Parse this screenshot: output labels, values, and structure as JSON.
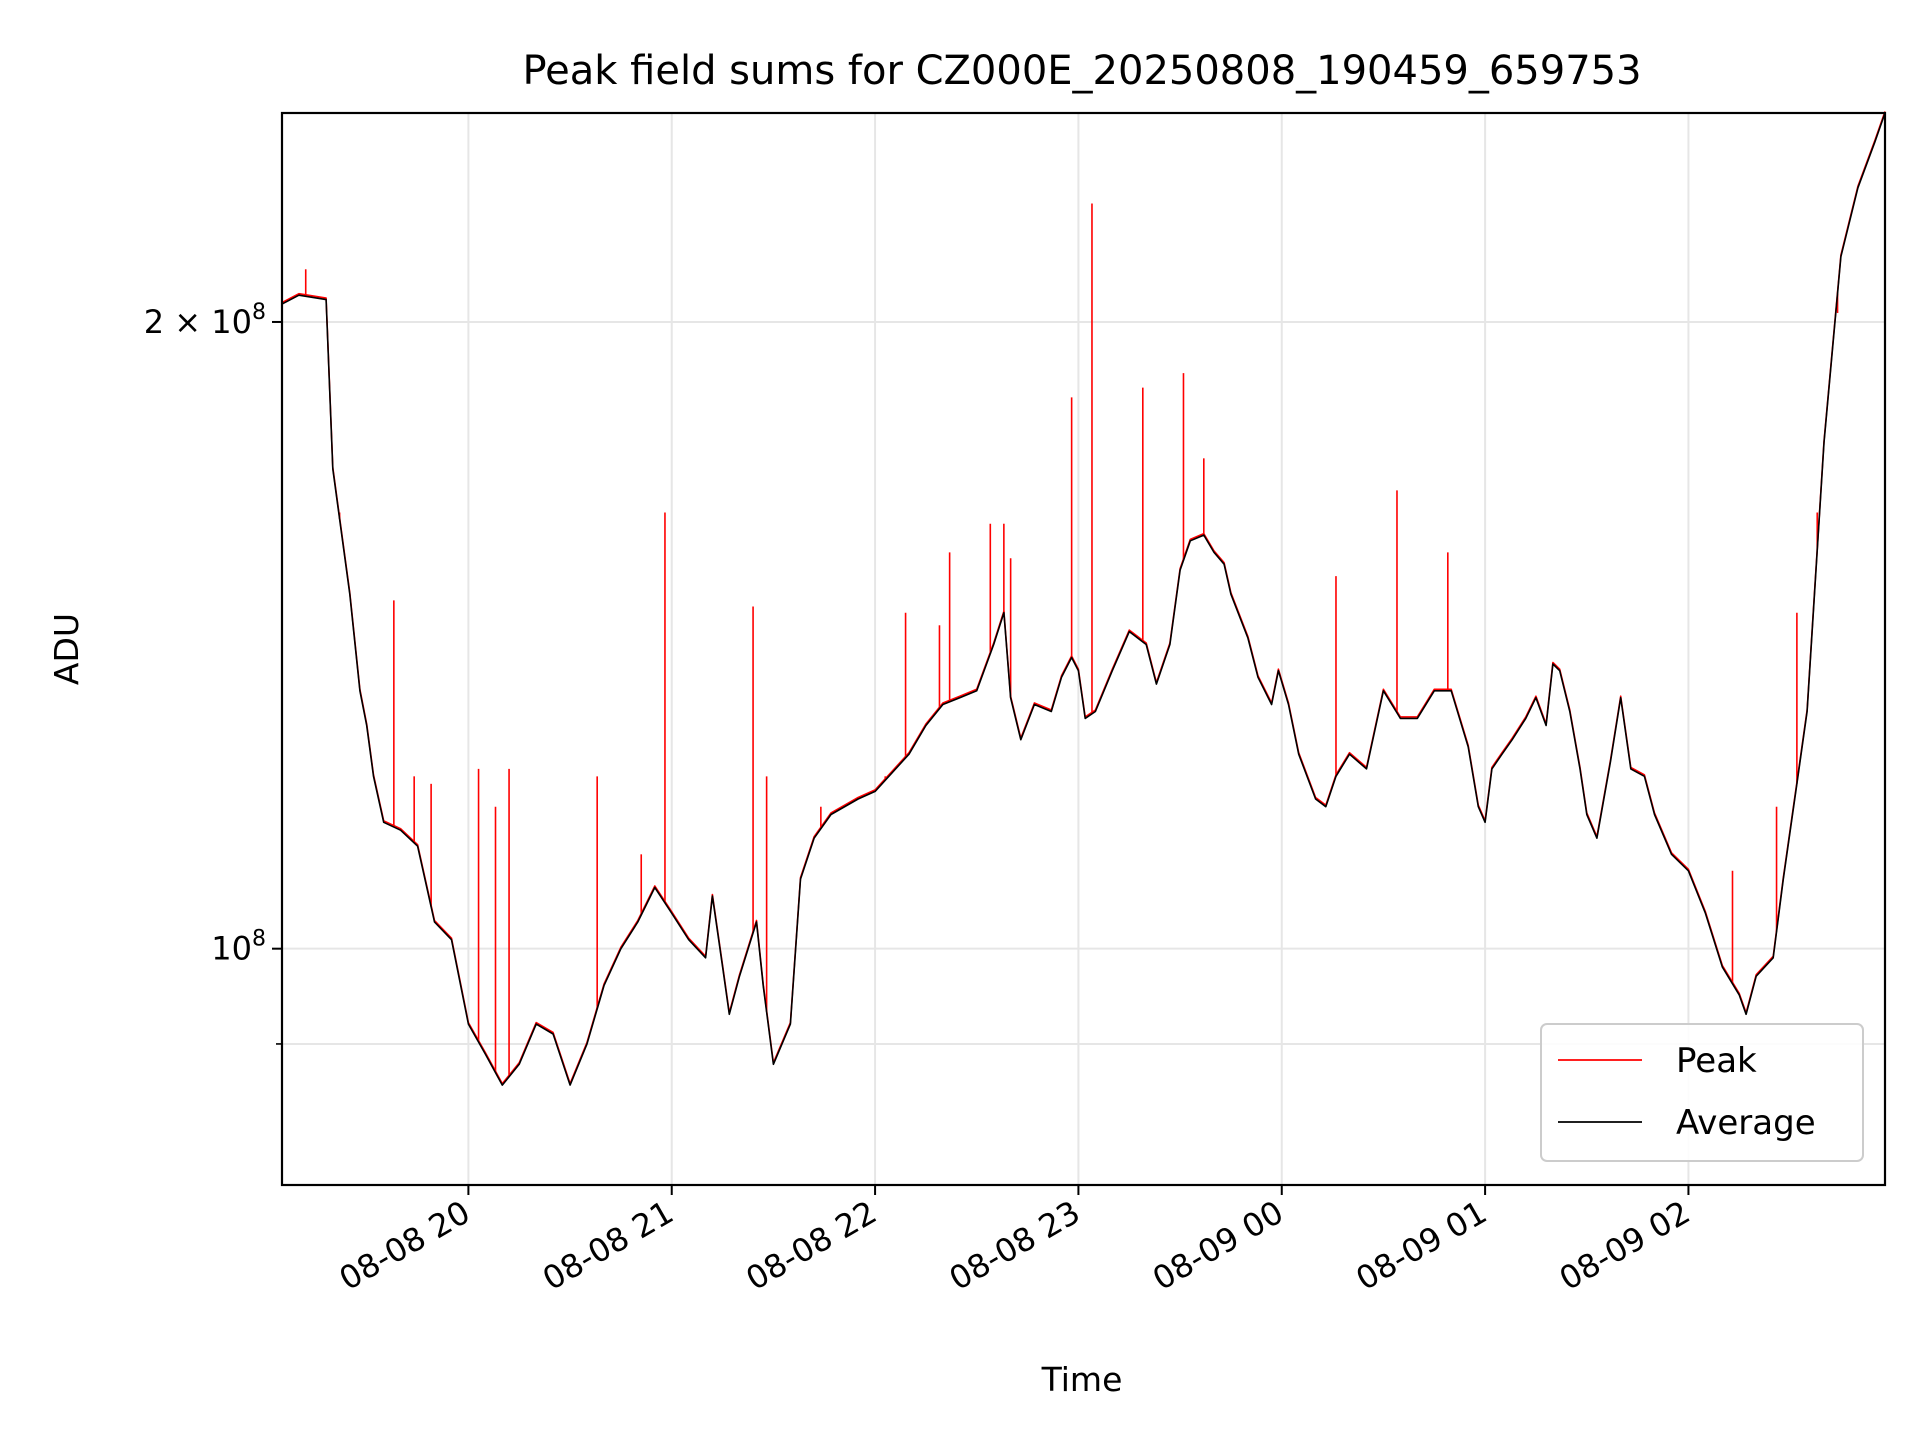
{
  "chart_data": {
    "type": "line",
    "title": "Peak field sums for CZ000E_20250808_190459_659753",
    "xlabel": "Time",
    "ylabel": "ADU",
    "x_axis": {
      "kind": "time",
      "range": [
        "2025-08-08 19:05",
        "2025-08-09 02:58"
      ],
      "ticks": [
        {
          "time": "2025-08-08 20:00",
          "label": "08-08 20"
        },
        {
          "time": "2025-08-08 21:00",
          "label": "08-08 21"
        },
        {
          "time": "2025-08-08 22:00",
          "label": "08-08 22"
        },
        {
          "time": "2025-08-08 23:00",
          "label": "08-08 23"
        },
        {
          "time": "2025-08-09 00:00",
          "label": "08-09 00"
        },
        {
          "time": "2025-08-09 01:00",
          "label": "08-09 01"
        },
        {
          "time": "2025-08-09 02:00",
          "label": "08-09 02"
        }
      ]
    },
    "y_axis": {
      "scale": "log",
      "range": [
        77000000,
        252000000
      ],
      "major_ticks": [
        {
          "value": 100000000,
          "label_base": "10",
          "label_exp": "8",
          "label_prefix": ""
        },
        {
          "value": 200000000,
          "label_base": "10",
          "label_exp": "8",
          "label_prefix": "2 × "
        }
      ],
      "minor_grid": [
        90000000
      ]
    },
    "grid": true,
    "legend": {
      "placement": "lower-right",
      "entries": [
        {
          "name": "Peak",
          "color": "#ff0000"
        },
        {
          "name": "Average",
          "color": "#000000"
        }
      ]
    },
    "series": [
      {
        "name": "Average",
        "color": "#000000",
        "points": [
          [
            "2025-08-08 19:05",
            204000000
          ],
          [
            "2025-08-08 19:10",
            206000000
          ],
          [
            "2025-08-08 19:18",
            205000000
          ],
          [
            "2025-08-08 19:20",
            170000000
          ],
          [
            "2025-08-08 19:25",
            148000000
          ],
          [
            "2025-08-08 19:28",
            133000000
          ],
          [
            "2025-08-08 19:30",
            128000000
          ],
          [
            "2025-08-08 19:32",
            121000000
          ],
          [
            "2025-08-08 19:35",
            115000000
          ],
          [
            "2025-08-08 19:40",
            114000000
          ],
          [
            "2025-08-08 19:45",
            112000000
          ],
          [
            "2025-08-08 19:50",
            103000000
          ],
          [
            "2025-08-08 19:55",
            101000000
          ],
          [
            "2025-08-08 20:00",
            92000000
          ],
          [
            "2025-08-08 20:05",
            89000000
          ],
          [
            "2025-08-08 20:10",
            86000000
          ],
          [
            "2025-08-08 20:15",
            88000000
          ],
          [
            "2025-08-08 20:20",
            92000000
          ],
          [
            "2025-08-08 20:25",
            91000000
          ],
          [
            "2025-08-08 20:30",
            86000000
          ],
          [
            "2025-08-08 20:35",
            90000000
          ],
          [
            "2025-08-08 20:40",
            96000000
          ],
          [
            "2025-08-08 20:45",
            100000000
          ],
          [
            "2025-08-08 20:50",
            103000000
          ],
          [
            "2025-08-08 20:55",
            107000000
          ],
          [
            "2025-08-08 21:00",
            104000000
          ],
          [
            "2025-08-08 21:05",
            101000000
          ],
          [
            "2025-08-08 21:10",
            99000000
          ],
          [
            "2025-08-08 21:12",
            106000000
          ],
          [
            "2025-08-08 21:15",
            98000000
          ],
          [
            "2025-08-08 21:17",
            93000000
          ],
          [
            "2025-08-08 21:20",
            97000000
          ],
          [
            "2025-08-08 21:25",
            103000000
          ],
          [
            "2025-08-08 21:27",
            96000000
          ],
          [
            "2025-08-08 21:30",
            88000000
          ],
          [
            "2025-08-08 21:35",
            92000000
          ],
          [
            "2025-08-08 21:38",
            108000000
          ],
          [
            "2025-08-08 21:42",
            113000000
          ],
          [
            "2025-08-08 21:47",
            116000000
          ],
          [
            "2025-08-08 21:55",
            118000000
          ],
          [
            "2025-08-08 22:00",
            119000000
          ],
          [
            "2025-08-08 22:10",
            124000000
          ],
          [
            "2025-08-08 22:15",
            128000000
          ],
          [
            "2025-08-08 22:20",
            131000000
          ],
          [
            "2025-08-08 22:25",
            132000000
          ],
          [
            "2025-08-08 22:30",
            133000000
          ],
          [
            "2025-08-08 22:35",
            140000000
          ],
          [
            "2025-08-08 22:38",
            145000000
          ],
          [
            "2025-08-08 22:40",
            132000000
          ],
          [
            "2025-08-08 22:43",
            126000000
          ],
          [
            "2025-08-08 22:47",
            131000000
          ],
          [
            "2025-08-08 22:52",
            130000000
          ],
          [
            "2025-08-08 22:55",
            135000000
          ],
          [
            "2025-08-08 22:58",
            138000000
          ],
          [
            "2025-08-08 23:00",
            136000000
          ],
          [
            "2025-08-08 23:02",
            129000000
          ],
          [
            "2025-08-08 23:05",
            130000000
          ],
          [
            "2025-08-08 23:10",
            136000000
          ],
          [
            "2025-08-08 23:15",
            142000000
          ],
          [
            "2025-08-08 23:20",
            140000000
          ],
          [
            "2025-08-08 23:23",
            134000000
          ],
          [
            "2025-08-08 23:27",
            140000000
          ],
          [
            "2025-08-08 23:30",
            152000000
          ],
          [
            "2025-08-08 23:33",
            157000000
          ],
          [
            "2025-08-08 23:37",
            158000000
          ],
          [
            "2025-08-08 23:40",
            155000000
          ],
          [
            "2025-08-08 23:43",
            153000000
          ],
          [
            "2025-08-08 23:45",
            148000000
          ],
          [
            "2025-08-08 23:50",
            141000000
          ],
          [
            "2025-08-08 23:53",
            135000000
          ],
          [
            "2025-08-08 23:57",
            131000000
          ],
          [
            "2025-08-08 23:59",
            136000000
          ],
          [
            "2025-08-09 00:02",
            131000000
          ],
          [
            "2025-08-09 00:05",
            124000000
          ],
          [
            "2025-08-09 00:10",
            118000000
          ],
          [
            "2025-08-09 00:13",
            117000000
          ],
          [
            "2025-08-09 00:16",
            121000000
          ],
          [
            "2025-08-09 00:20",
            124000000
          ],
          [
            "2025-08-09 00:25",
            122000000
          ],
          [
            "2025-08-09 00:30",
            133000000
          ],
          [
            "2025-08-09 00:35",
            129000000
          ],
          [
            "2025-08-09 00:40",
            129000000
          ],
          [
            "2025-08-09 00:45",
            133000000
          ],
          [
            "2025-08-09 00:50",
            133000000
          ],
          [
            "2025-08-09 00:55",
            125000000
          ],
          [
            "2025-08-09 00:58",
            117000000
          ],
          [
            "2025-08-09 01:00",
            115000000
          ],
          [
            "2025-08-09 01:02",
            122000000
          ],
          [
            "2025-08-09 01:05",
            124000000
          ],
          [
            "2025-08-09 01:08",
            126000000
          ],
          [
            "2025-08-09 01:12",
            129000000
          ],
          [
            "2025-08-09 01:15",
            132000000
          ],
          [
            "2025-08-09 01:18",
            128000000
          ],
          [
            "2025-08-09 01:20",
            137000000
          ],
          [
            "2025-08-09 01:22",
            136000000
          ],
          [
            "2025-08-09 01:25",
            130000000
          ],
          [
            "2025-08-09 01:28",
            122000000
          ],
          [
            "2025-08-09 01:30",
            116000000
          ],
          [
            "2025-08-09 01:33",
            113000000
          ],
          [
            "2025-08-09 01:37",
            123000000
          ],
          [
            "2025-08-09 01:40",
            132000000
          ],
          [
            "2025-08-09 01:43",
            122000000
          ],
          [
            "2025-08-09 01:47",
            121000000
          ],
          [
            "2025-08-09 01:50",
            116000000
          ],
          [
            "2025-08-09 01:55",
            111000000
          ],
          [
            "2025-08-09 02:00",
            109000000
          ],
          [
            "2025-08-09 02:05",
            104000000
          ],
          [
            "2025-08-09 02:10",
            98000000
          ],
          [
            "2025-08-09 02:15",
            95000000
          ],
          [
            "2025-08-09 02:17",
            93000000
          ],
          [
            "2025-08-09 02:20",
            97000000
          ],
          [
            "2025-08-09 02:25",
            99000000
          ],
          [
            "2025-08-09 02:28",
            108000000
          ],
          [
            "2025-08-09 02:32",
            120000000
          ],
          [
            "2025-08-09 02:35",
            130000000
          ],
          [
            "2025-08-09 02:40",
            175000000
          ],
          [
            "2025-08-09 02:45",
            215000000
          ],
          [
            "2025-08-09 02:50",
            232000000
          ],
          [
            "2025-08-09 02:55",
            244000000
          ],
          [
            "2025-08-09 02:58",
            252000000
          ]
        ]
      },
      {
        "name": "Peak",
        "color": "#ff0000",
        "points": [
          [
            "2025-08-08 19:12",
            212000000
          ],
          [
            "2025-08-08 19:22",
            162000000
          ],
          [
            "2025-08-08 19:38",
            147000000
          ],
          [
            "2025-08-08 19:44",
            121000000
          ],
          [
            "2025-08-08 19:49",
            120000000
          ],
          [
            "2025-08-08 20:03",
            122000000
          ],
          [
            "2025-08-08 20:08",
            117000000
          ],
          [
            "2025-08-08 20:12",
            122000000
          ],
          [
            "2025-08-08 20:38",
            121000000
          ],
          [
            "2025-08-08 20:51",
            111000000
          ],
          [
            "2025-08-08 20:58",
            162000000
          ],
          [
            "2025-08-08 21:24",
            146000000
          ],
          [
            "2025-08-08 21:28",
            121000000
          ],
          [
            "2025-08-08 21:44",
            117000000
          ],
          [
            "2025-08-08 22:03",
            121000000
          ],
          [
            "2025-08-08 22:09",
            145000000
          ],
          [
            "2025-08-08 22:19",
            143000000
          ],
          [
            "2025-08-08 22:22",
            155000000
          ],
          [
            "2025-08-08 22:34",
            160000000
          ],
          [
            "2025-08-08 22:38",
            160000000
          ],
          [
            "2025-08-08 22:40",
            154000000
          ],
          [
            "2025-08-08 22:58",
            184000000
          ],
          [
            "2025-08-08 23:04",
            228000000
          ],
          [
            "2025-08-08 23:19",
            186000000
          ],
          [
            "2025-08-08 23:31",
            189000000
          ],
          [
            "2025-08-08 23:37",
            172000000
          ],
          [
            "2025-08-09 00:16",
            151000000
          ],
          [
            "2025-08-09 00:34",
            166000000
          ],
          [
            "2025-08-09 00:49",
            155000000
          ],
          [
            "2025-08-09 02:13",
            109000000
          ],
          [
            "2025-08-09 02:26",
            117000000
          ],
          [
            "2025-08-09 02:32",
            145000000
          ],
          [
            "2025-08-09 02:38",
            162000000
          ],
          [
            "2025-08-09 02:44",
            202000000
          ]
        ]
      }
    ]
  }
}
